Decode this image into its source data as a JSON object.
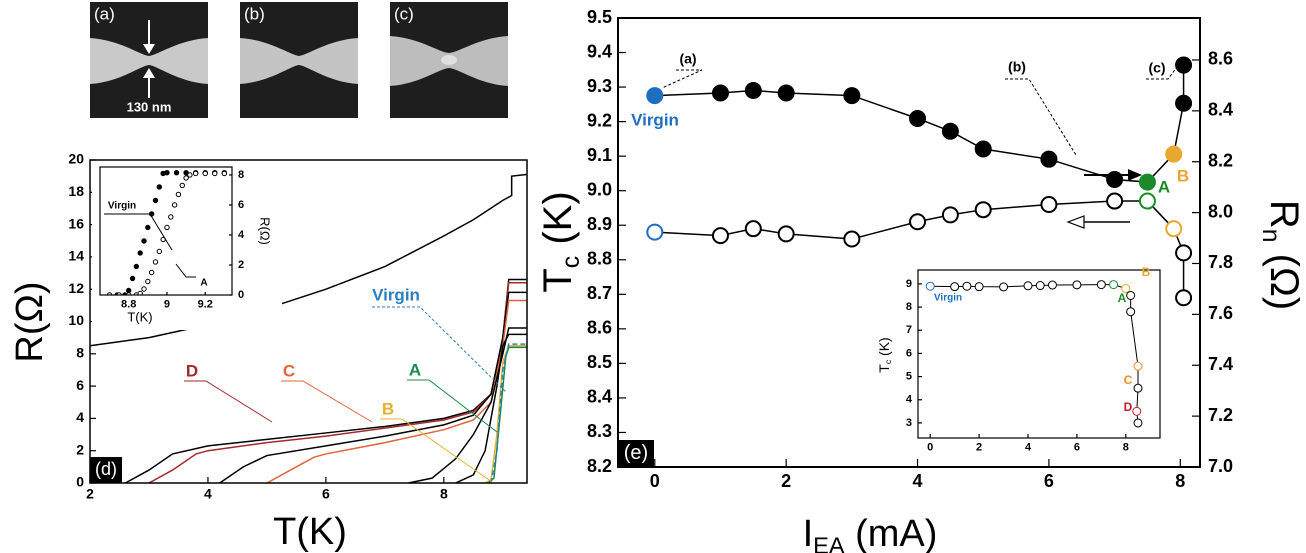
{
  "images": [
    {
      "label": "(a)"
    },
    {
      "label": "(b)"
    },
    {
      "label": "(c)"
    }
  ],
  "scale_bar": "130 nm",
  "chart_data": [
    {
      "type": "line",
      "panel": "(d)",
      "x_label": "T(K)",
      "y_label": "R(Ω)",
      "xlim": [
        2,
        9.41
      ],
      "xticks": [
        2,
        4,
        6,
        8
      ],
      "ylim": [
        0,
        20
      ],
      "yticks": [
        0,
        2,
        4,
        6,
        8,
        10,
        12,
        14,
        16,
        18,
        20
      ],
      "series": [
        {
          "color": "#000000",
          "x": [
            2,
            3,
            4,
            5,
            6,
            7,
            8,
            8.5,
            9,
            9.15,
            9.15,
            9.4
          ],
          "values": [
            8.5,
            9.0,
            9.8,
            10.8,
            12.0,
            13.4,
            15.3,
            16.3,
            17.5,
            17.8,
            19.0,
            19.1
          ]
        },
        {
          "color": "#000000",
          "x": [
            2.6,
            3.0,
            3.4,
            4,
            5,
            6,
            7,
            8,
            8.5,
            8.8,
            9.0,
            9.1,
            9.4
          ],
          "values": [
            0,
            0.8,
            1.8,
            2.3,
            2.7,
            3.1,
            3.5,
            4.0,
            4.5,
            5.5,
            9,
            12.6,
            12.6
          ]
        },
        {
          "name": "D",
          "color": "#a32a2a",
          "x": [
            3.0,
            3.4,
            3.8,
            4,
            5,
            6,
            7,
            8,
            8.5,
            8.8,
            9.0,
            9.1,
            9.4
          ],
          "values": [
            0,
            0.8,
            1.8,
            2.0,
            2.5,
            2.9,
            3.4,
            3.9,
            4.4,
            5.5,
            9,
            12.4,
            12.4
          ]
        },
        {
          "color": "#000000",
          "x": [
            4.2,
            4.6,
            5,
            6,
            7,
            8,
            8.5,
            8.8,
            9.0,
            9.1,
            9.4
          ],
          "values": [
            0,
            1.0,
            1.7,
            2.3,
            2.9,
            3.6,
            4.2,
            5.5,
            9,
            11.8,
            11.8
          ]
        },
        {
          "name": "C",
          "color": "#e0643a",
          "x": [
            5.0,
            5.4,
            5.8,
            6,
            7,
            8,
            8.5,
            8.8,
            9.0,
            9.1,
            9.4
          ],
          "values": [
            0,
            0.8,
            1.6,
            1.8,
            2.5,
            3.3,
            3.9,
            5,
            8.5,
            11.3,
            11.3
          ]
        },
        {
          "color": "#000000",
          "x": [
            7.4,
            7.8,
            8.2,
            8.5,
            8.8,
            9.0,
            9.1,
            9.4
          ],
          "values": [
            0,
            0.3,
            1.5,
            3,
            5,
            8,
            9.6,
            9.6
          ]
        },
        {
          "color": "#000000",
          "x": [
            8.2,
            8.5,
            8.7,
            8.9,
            9.0,
            9.1,
            9.4
          ],
          "values": [
            0,
            0.5,
            2,
            6,
            8.5,
            9.2,
            9.2
          ]
        },
        {
          "name": "B",
          "color": "#e8b030",
          "x": [
            8.7,
            8.8,
            8.9,
            9.0,
            9.1,
            9.4
          ],
          "values": [
            0,
            0.2,
            3,
            7.5,
            8.5,
            8.5
          ]
        },
        {
          "name": "A",
          "color": "#1a8a4a",
          "x": [
            8.75,
            8.85,
            8.95,
            9.05,
            9.1,
            9.4
          ],
          "values": [
            0,
            0.3,
            4,
            7.8,
            8.4,
            8.4
          ]
        },
        {
          "name": "Virgin",
          "color": "#2a7fc0",
          "dash": true,
          "x": [
            8.8,
            8.9,
            9.0,
            9.1,
            9.4
          ],
          "values": [
            0,
            2,
            7,
            8.6,
            8.6
          ]
        }
      ]
    },
    {
      "type": "scatter",
      "x_label": "T(K)",
      "y_label": "R(Ω)",
      "xlim": [
        8.65,
        9.34
      ],
      "xticks": [
        8.8,
        9,
        9.2
      ],
      "ylim": [
        0,
        8.53
      ],
      "yticks": [
        0,
        2,
        4,
        6,
        8
      ],
      "series": [
        {
          "name": "Virgin",
          "color": "#000000",
          "marker": "filled",
          "x": [
            8.7,
            8.74,
            8.78,
            8.8,
            8.82,
            8.84,
            8.86,
            8.88,
            8.9,
            8.92,
            8.94,
            8.96,
            8.98,
            9.0,
            9.05,
            9.1,
            9.15,
            9.2,
            9.25,
            9.3
          ],
          "values": [
            0,
            0,
            0,
            0.3,
            1.1,
            1.9,
            2.8,
            3.6,
            4.5,
            5.4,
            6.3,
            7.2,
            8.1,
            8.15,
            8.15,
            8.15,
            8.15,
            8.15,
            8.15,
            8.15
          ]
        },
        {
          "name": "A",
          "color": "#000000",
          "marker": "open",
          "x": [
            8.7,
            8.75,
            8.8,
            8.84,
            8.86,
            8.88,
            8.9,
            8.92,
            8.94,
            8.96,
            8.98,
            9.0,
            9.02,
            9.04,
            9.06,
            9.08,
            9.1,
            9.12,
            9.15,
            9.2,
            9.25,
            9.3
          ],
          "values": [
            0,
            0,
            0,
            0,
            0.1,
            0.4,
            0.9,
            1.5,
            2.2,
            2.9,
            3.7,
            4.5,
            5.2,
            6.0,
            6.7,
            7.3,
            7.8,
            8.0,
            8.1,
            8.1,
            8.1,
            8.1
          ]
        }
      ]
    },
    {
      "type": "line",
      "panel": "(e)",
      "x_label": {
        "main": "I",
        "sub": "EA",
        "rest": " (mA)"
      },
      "y_label": {
        "main": "T",
        "sub": "c",
        "rest": " (K)"
      },
      "y2_label": {
        "main": "R",
        "sub": "n",
        "rest": " (Ω)"
      },
      "xlim": [
        -0.56,
        8.3
      ],
      "xticks": [
        0,
        2,
        4,
        6,
        8
      ],
      "ylim": [
        8.2,
        9.5
      ],
      "yticks": [
        8.2,
        8.3,
        8.4,
        8.5,
        8.6,
        8.7,
        8.8,
        8.9,
        {
          "value": 9,
          "label": "9.0"
        },
        9.1,
        9.2,
        9.3,
        9.4,
        9.5
      ],
      "y2lim": [
        7.0,
        8.765
      ],
      "y2ticks": [
        {
          "value": 7,
          "label": "7.0"
        },
        7.2,
        7.4,
        7.6,
        7.8,
        {
          "value": 8,
          "label": "8.0"
        },
        8.2,
        8.4,
        8.6
      ],
      "annotations": [
        "(a)",
        "(b)",
        "(c)"
      ],
      "labels": [
        {
          "text": "Virgin",
          "color": "#1f6fc0"
        },
        {
          "text": "A",
          "color": "#1a8a2a"
        },
        {
          "text": "B",
          "color": "#e8a830"
        }
      ],
      "series": [
        {
          "color": "#000000",
          "marker": "open",
          "x": [
            0,
            1,
            1.5,
            2,
            3,
            4,
            4.5,
            5,
            6,
            7,
            7.5,
            7.9,
            8.05,
            8.05
          ],
          "values": [
            8.88,
            8.87,
            8.89,
            8.875,
            8.86,
            8.91,
            8.93,
            8.945,
            8.96,
            8.97,
            8.97,
            8.89,
            8.82,
            8.69
          ],
          "point_colors": [
            "#1f6fc0",
            "#000000",
            "#000000",
            "#000000",
            "#000000",
            "#000000",
            "#000000",
            "#000000",
            "#000000",
            "#000000",
            "#1a8a2a",
            "#e8a830",
            "#000000",
            "#000000"
          ]
        },
        {
          "color": "#000000",
          "marker": "filled",
          "axis": "y2",
          "x": [
            0,
            1,
            1.5,
            2,
            3,
            4,
            4.5,
            5,
            6,
            7,
            7.5,
            7.9,
            8.05,
            8.05
          ],
          "values": [
            8.46,
            8.47,
            8.48,
            8.47,
            8.46,
            8.37,
            8.32,
            8.25,
            8.21,
            8.13,
            8.12,
            8.23,
            8.43,
            8.58
          ],
          "point_colors": [
            "#1f6fc0",
            "#000000",
            "#000000",
            "#000000",
            "#000000",
            "#000000",
            "#000000",
            "#000000",
            "#000000",
            "#000000",
            "#1a8a2a",
            "#e8a830",
            "#000000",
            "#000000"
          ]
        }
      ]
    },
    {
      "type": "line",
      "y_label": {
        "main": "T",
        "sub": "c",
        "rest": " (K)"
      },
      "xlim": [
        -0.5,
        9.4
      ],
      "xticks": [
        0,
        2,
        4,
        6,
        8
      ],
      "ylim": [
        2.35,
        9.6
      ],
      "yticks": [
        3,
        4,
        5,
        6,
        7,
        8,
        9
      ],
      "labels": [
        {
          "text": "Virgin",
          "color": "#1f6fc0"
        },
        {
          "text": "A",
          "color": "#1a8a2a"
        },
        {
          "text": "B",
          "color": "#e8a830"
        },
        {
          "text": "C",
          "color": "#e8902a"
        },
        {
          "text": "D",
          "color": "#c0202a"
        }
      ],
      "series": [
        {
          "color": "#000000",
          "marker": "open",
          "x": [
            0,
            1,
            1.5,
            2,
            3,
            4,
            4.5,
            5,
            6,
            7,
            7.5,
            8.0,
            8.2,
            8.2,
            8.5,
            8.5,
            8.45,
            8.5
          ],
          "values": [
            8.9,
            8.88,
            8.9,
            8.88,
            8.87,
            8.92,
            8.93,
            8.95,
            8.96,
            8.97,
            8.97,
            8.8,
            8.5,
            7.8,
            5.45,
            4.5,
            3.5,
            3.0
          ],
          "point_colors": [
            "#1f6fc0",
            "#000000",
            "#000000",
            "#000000",
            "#000000",
            "#000000",
            "#000000",
            "#000000",
            "#000000",
            "#000000",
            "#1a8a2a",
            "#e8a830",
            "#000000",
            "#000000",
            "#e8902a",
            "#000000",
            "#c0202a",
            "#000000"
          ]
        }
      ]
    }
  ]
}
